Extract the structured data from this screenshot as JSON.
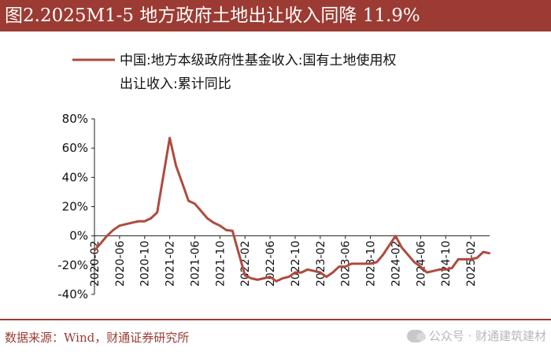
{
  "header": {
    "title": "图2.2025M1-5 地方政府土地出让收入同降 11.9%"
  },
  "footer": {
    "source": "数据来源：Wind，财通证券研究所",
    "watermark": "公众号 · 财通建筑建材"
  },
  "colors": {
    "series": "#b04a3e",
    "title_bg": "#9b3b33"
  },
  "chart_data": {
    "type": "line",
    "legend_lines": [
      "中国:地方本级政府性基金收入:国有土地使用权",
      "出让收入:累计同比"
    ],
    "series": [
      {
        "name": "中国:地方本级政府性基金收入:国有土地使用权出让收入:累计同比",
        "x": [
          "2020-02",
          "2020-03",
          "2020-04",
          "2020-05",
          "2020-06",
          "2020-07",
          "2020-08",
          "2020-09",
          "2020-10",
          "2020-11",
          "2020-12",
          "2021-02",
          "2021-03",
          "2021-04",
          "2021-05",
          "2021-06",
          "2021-07",
          "2021-08",
          "2021-09",
          "2021-10",
          "2021-11",
          "2021-12",
          "2022-02",
          "2022-03",
          "2022-04",
          "2022-05",
          "2022-06",
          "2022-07",
          "2022-08",
          "2022-09",
          "2022-10",
          "2022-11",
          "2022-12",
          "2023-02",
          "2023-03",
          "2023-04",
          "2023-05",
          "2023-06",
          "2023-07",
          "2023-08",
          "2023-09",
          "2023-10",
          "2023-11",
          "2023-12",
          "2024-02",
          "2024-03",
          "2024-04",
          "2024-05",
          "2024-06",
          "2024-07",
          "2024-08",
          "2024-09",
          "2024-10",
          "2024-11",
          "2024-12",
          "2025-02",
          "2025-03",
          "2025-04",
          "2025-05"
        ],
        "values": [
          -10,
          -5,
          0,
          4,
          7,
          8,
          9,
          10,
          10,
          12,
          16,
          67,
          48,
          36,
          24,
          22,
          17,
          12,
          9,
          7,
          4,
          3.5,
          -27,
          -29,
          -30,
          -29,
          -28,
          -31,
          -29,
          -28,
          -25,
          -25,
          -23,
          -25,
          -28,
          -25,
          -21,
          -21,
          -19,
          -19,
          -19,
          -19,
          -18,
          -13,
          0,
          -8,
          -13,
          -18,
          -21,
          -25,
          -24,
          -23,
          -23,
          -22,
          -16,
          -16,
          -15,
          -11,
          -11.9
        ]
      }
    ],
    "ylim": [
      -40,
      80
    ],
    "yticks": [
      "80%",
      "60%",
      "40%",
      "20%",
      "0%",
      "-20%",
      "-40%"
    ],
    "xticks": [
      "2020-02",
      "2020-06",
      "2020-10",
      "2021-02",
      "2021-06",
      "2021-10",
      "2022-02",
      "2022-06",
      "2022-10",
      "2023-02",
      "2023-06",
      "2023-10",
      "2024-02",
      "2024-06",
      "2024-10",
      "2025-02"
    ],
    "grid": false,
    "legend_position": "top"
  }
}
